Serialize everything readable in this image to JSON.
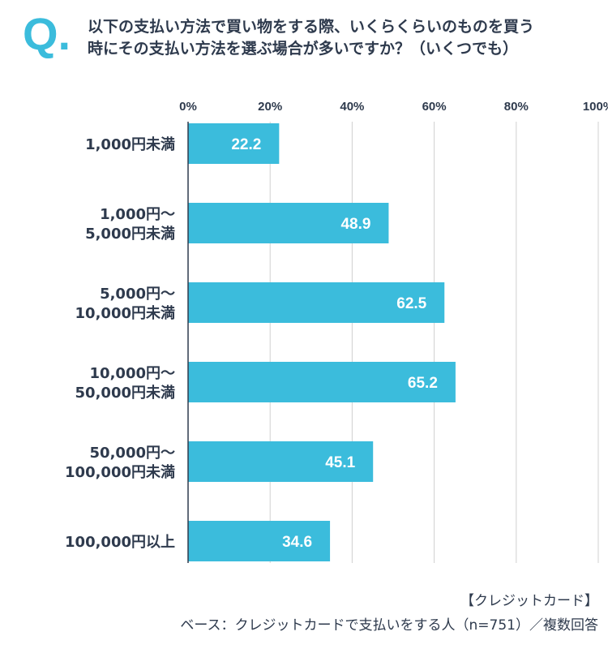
{
  "question": {
    "mark": "Q.",
    "line1": "以下の支払い方法で買い物をする際、いくらくらいのものを買う",
    "line2": "時にその支払い方法を選ぶ場合が多いですか？（いくつでも）"
  },
  "chart_data": {
    "type": "bar",
    "orientation": "horizontal",
    "categories": [
      [
        "1,000円未満"
      ],
      [
        "1,000円〜",
        "5,000円未満"
      ],
      [
        "5,000円〜",
        "10,000円未満"
      ],
      [
        "10,000円〜",
        "50,000円未満"
      ],
      [
        "50,000円〜",
        "100,000円未満"
      ],
      [
        "100,000円以上"
      ]
    ],
    "values": [
      22.2,
      48.9,
      62.5,
      65.2,
      45.1,
      34.6
    ],
    "xlim": [
      0,
      100
    ],
    "ticks": [
      "0%",
      "20%",
      "40%",
      "60%",
      "80%",
      "100%"
    ],
    "tick_values": [
      0,
      20,
      40,
      60,
      80,
      100
    ],
    "bar_color": "#3bbcdc",
    "grid": true
  },
  "footer": {
    "category": "【クレジットカード】",
    "base": "ベース：クレジットカードで支払いをする人（n=751）／複数回答"
  }
}
